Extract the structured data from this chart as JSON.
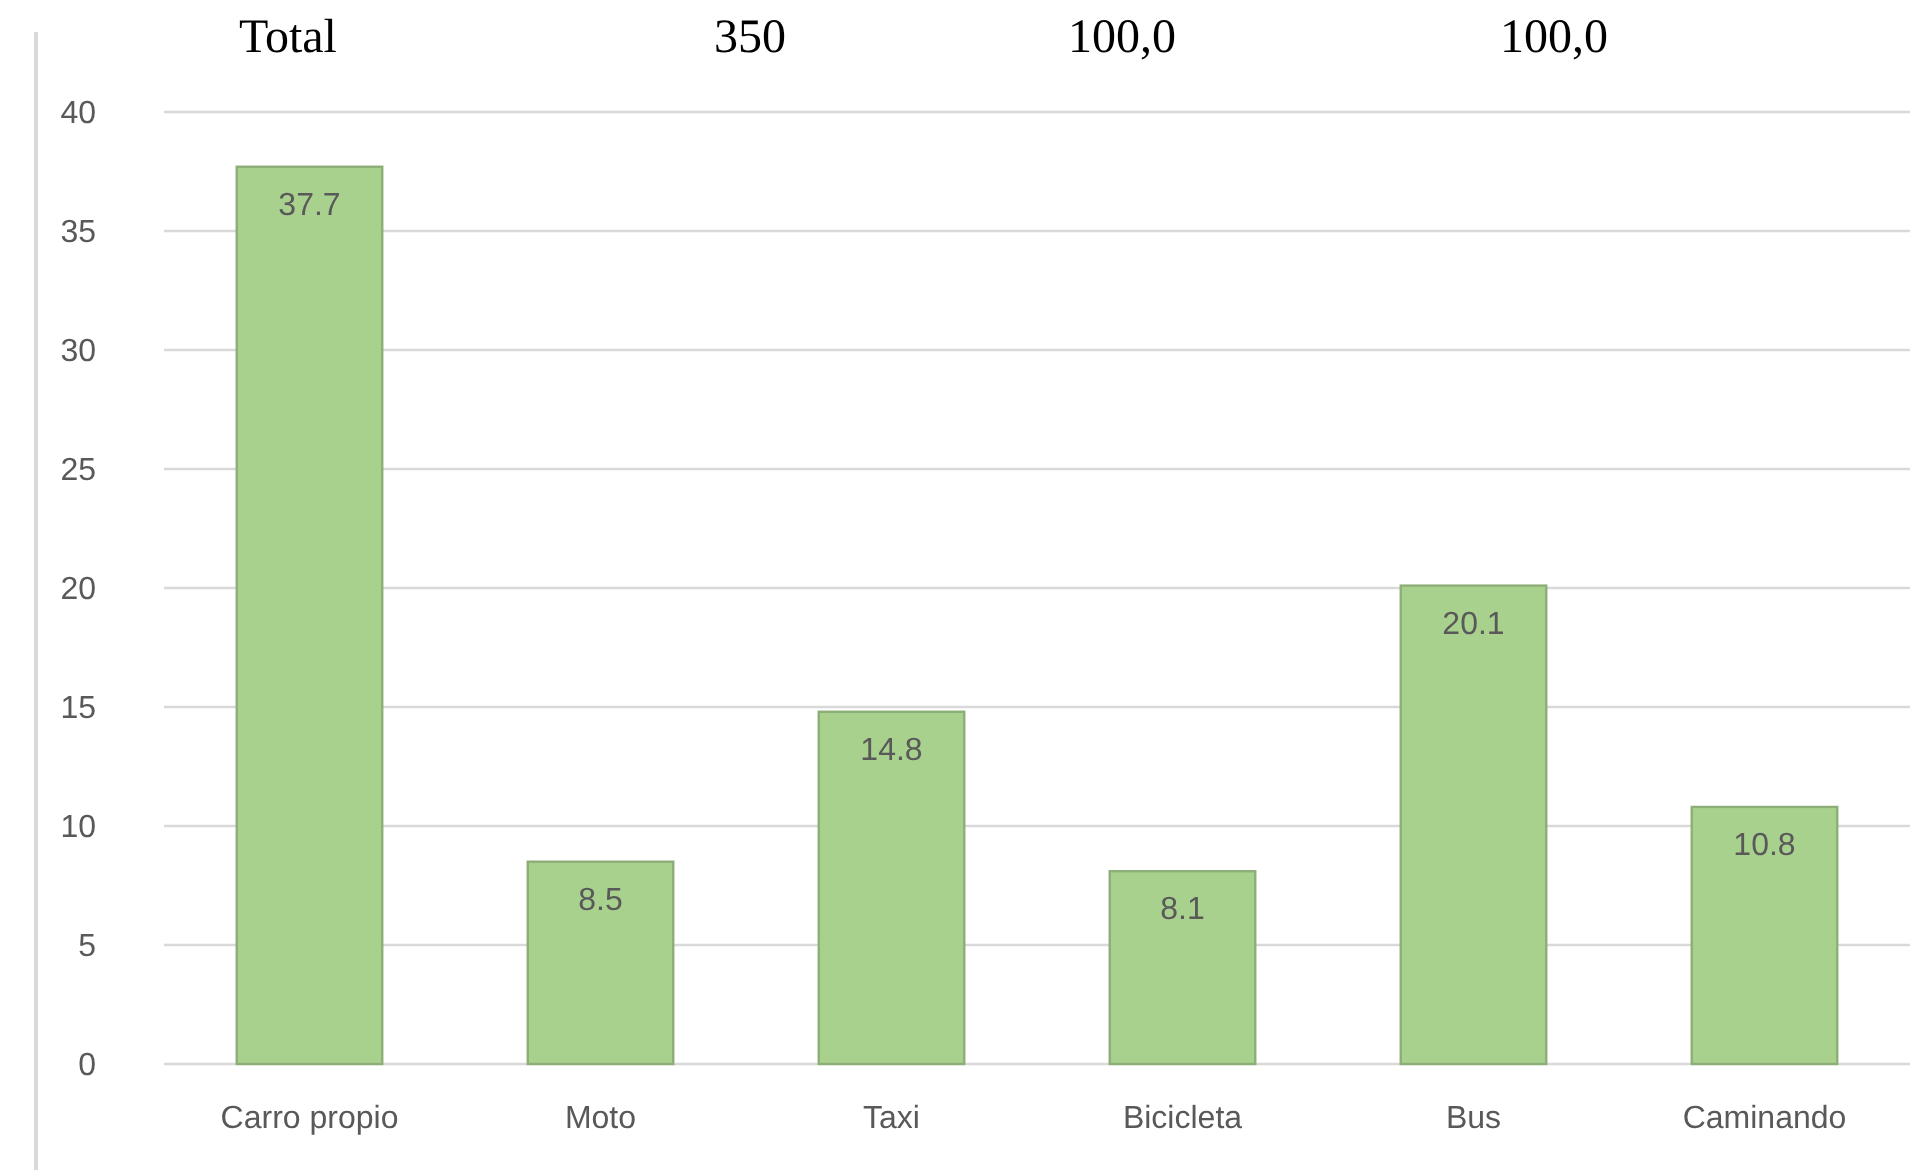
{
  "chart_data": {
    "type": "bar",
    "categories": [
      "Carro propio",
      "Moto",
      "Taxi",
      "Bicicleta",
      "Bus",
      "Caminando"
    ],
    "values": [
      37.7,
      8.5,
      14.8,
      8.1,
      20.1,
      10.8
    ],
    "color": "#a9d18e",
    "ylim": [
      0,
      40
    ],
    "yticks": [
      0,
      5,
      10,
      15,
      20,
      25,
      30,
      35,
      40
    ],
    "grid": "y",
    "data_labels": true,
    "annotations": [
      "Total",
      "350",
      "100,0",
      "100,0"
    ]
  }
}
